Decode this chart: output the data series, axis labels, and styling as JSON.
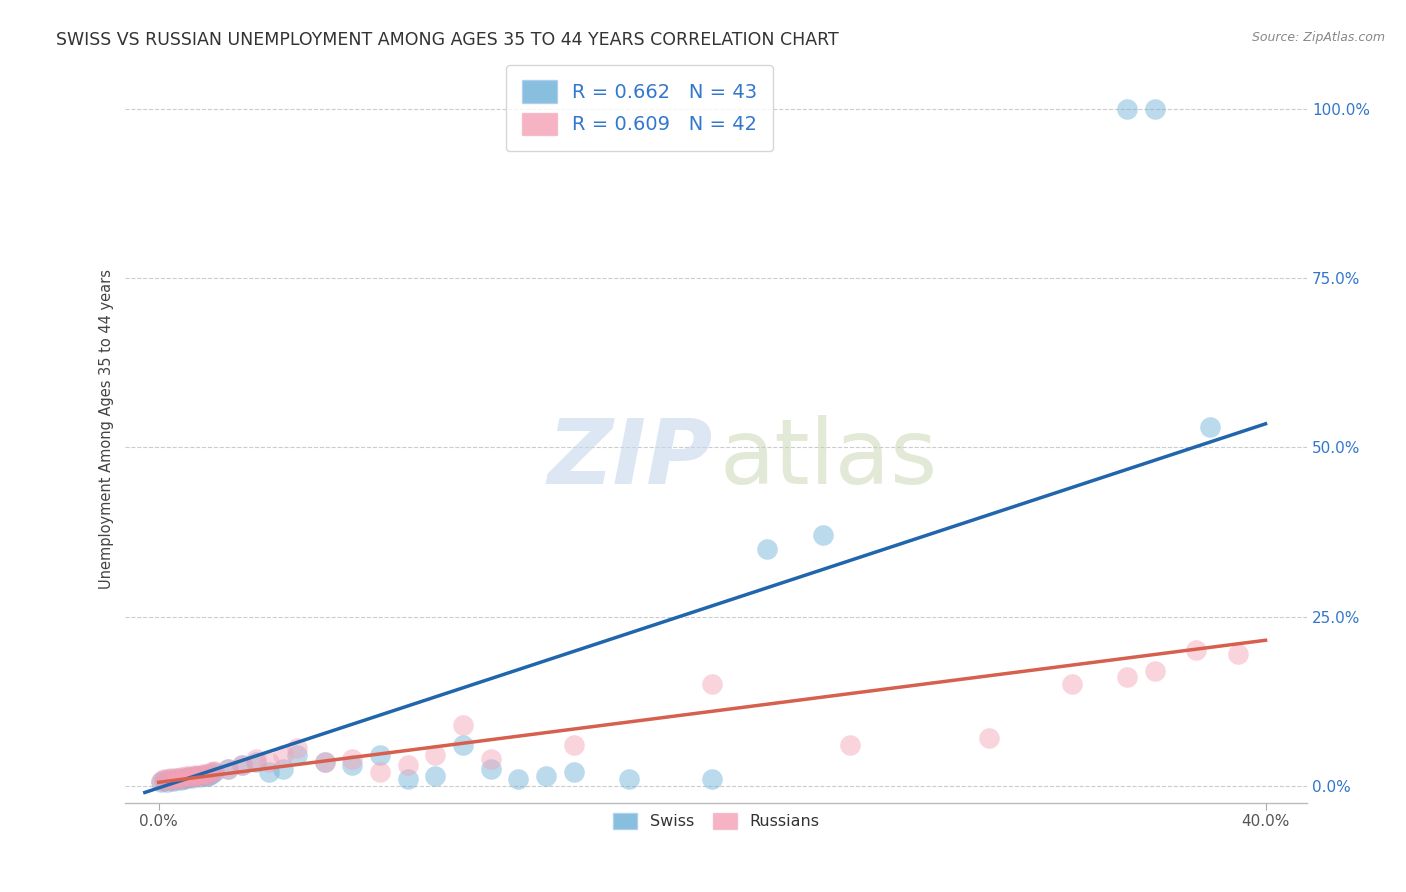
{
  "title": "SWISS VS RUSSIAN UNEMPLOYMENT AMONG AGES 35 TO 44 YEARS CORRELATION CHART",
  "source": "Source: ZipAtlas.com",
  "ylabel": "Unemployment Among Ages 35 to 44 years",
  "ytick_labels": [
    "0.0%",
    "25.0%",
    "50.0%",
    "75.0%",
    "100.0%"
  ],
  "ytick_vals": [
    0.0,
    0.25,
    0.5,
    0.75,
    1.0
  ],
  "legend1_text": "R = 0.662   N = 43",
  "legend2_text": "R = 0.609   N = 42",
  "swiss_color": "#6aaed6",
  "russian_color": "#f4a0b5",
  "swiss_line_color": "#2166ac",
  "russian_line_color": "#d6604d",
  "background_color": "#ffffff",
  "swiss_x": [
    0.001,
    0.002,
    0.003,
    0.004,
    0.005,
    0.006,
    0.007,
    0.008,
    0.009,
    0.01,
    0.011,
    0.012,
    0.013,
    0.014,
    0.015,
    0.016,
    0.017,
    0.018,
    0.019,
    0.02,
    0.025,
    0.03,
    0.035,
    0.04,
    0.045,
    0.05,
    0.06,
    0.07,
    0.08,
    0.09,
    0.1,
    0.11,
    0.12,
    0.13,
    0.14,
    0.15,
    0.17,
    0.2,
    0.22,
    0.24,
    0.35,
    0.36,
    0.38
  ],
  "swiss_y": [
    0.005,
    0.008,
    0.006,
    0.01,
    0.007,
    0.009,
    0.012,
    0.008,
    0.01,
    0.011,
    0.013,
    0.012,
    0.015,
    0.014,
    0.013,
    0.016,
    0.015,
    0.014,
    0.018,
    0.02,
    0.025,
    0.03,
    0.035,
    0.02,
    0.025,
    0.045,
    0.035,
    0.03,
    0.045,
    0.01,
    0.015,
    0.06,
    0.025,
    0.01,
    0.015,
    0.02,
    0.01,
    0.01,
    0.35,
    0.37,
    1.0,
    1.0,
    0.53
  ],
  "russian_x": [
    0.001,
    0.002,
    0.003,
    0.004,
    0.005,
    0.006,
    0.007,
    0.008,
    0.009,
    0.01,
    0.011,
    0.012,
    0.013,
    0.014,
    0.015,
    0.016,
    0.017,
    0.018,
    0.019,
    0.02,
    0.025,
    0.03,
    0.035,
    0.04,
    0.045,
    0.05,
    0.06,
    0.07,
    0.08,
    0.09,
    0.1,
    0.11,
    0.12,
    0.15,
    0.2,
    0.25,
    0.3,
    0.33,
    0.35,
    0.36,
    0.375,
    0.39
  ],
  "russian_y": [
    0.007,
    0.01,
    0.008,
    0.012,
    0.009,
    0.011,
    0.01,
    0.013,
    0.012,
    0.015,
    0.014,
    0.013,
    0.016,
    0.015,
    0.014,
    0.018,
    0.017,
    0.016,
    0.02,
    0.022,
    0.025,
    0.03,
    0.04,
    0.035,
    0.045,
    0.055,
    0.035,
    0.04,
    0.02,
    0.03,
    0.045,
    0.09,
    0.04,
    0.06,
    0.15,
    0.06,
    0.07,
    0.15,
    0.16,
    0.17,
    0.2,
    0.195
  ],
  "swiss_line_x": [
    -0.005,
    0.4
  ],
  "swiss_line_y": [
    -0.01,
    0.535
  ],
  "russian_line_x": [
    0.0,
    0.4
  ],
  "russian_line_y": [
    0.005,
    0.215
  ],
  "xlim": [
    -0.012,
    0.415
  ],
  "ylim": [
    -0.025,
    1.08
  ]
}
